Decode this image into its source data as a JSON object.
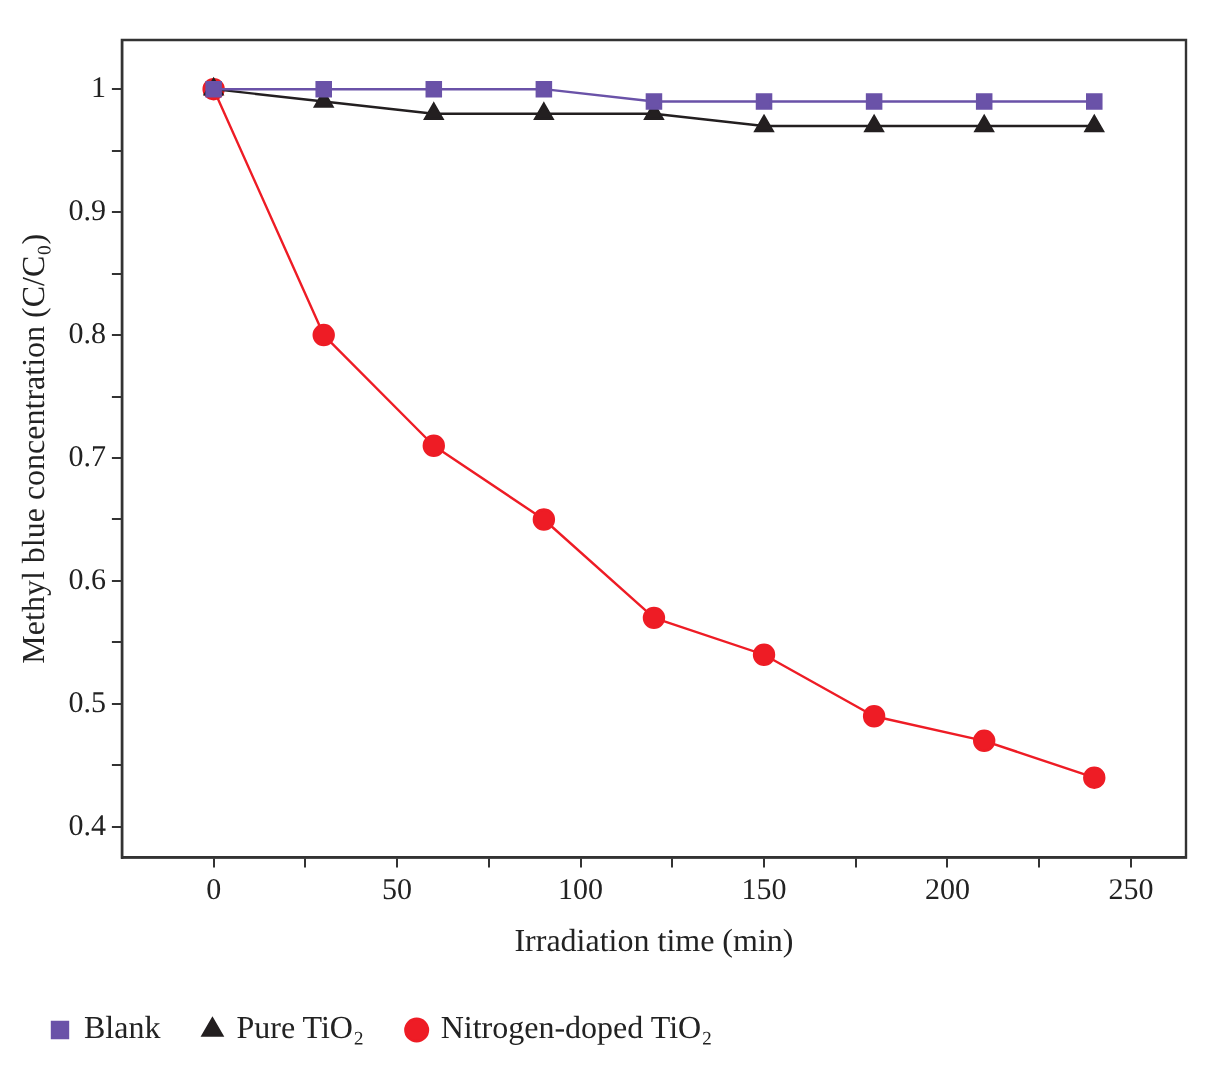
{
  "chart_data": {
    "type": "line",
    "xlabel": "Irradiation time (min)",
    "ylabel": "Methyl blue concentration (C/C₀)",
    "x": [
      0,
      30,
      60,
      90,
      120,
      150,
      180,
      210,
      240
    ],
    "series": [
      {
        "name": "Blank",
        "color": "#6a52a8",
        "marker": "square",
        "values": [
          1,
          1,
          1,
          1,
          0.99,
          0.99,
          0.99,
          0.99,
          0.99
        ]
      },
      {
        "name": "Pure TiO₂",
        "color": "#231f20",
        "marker": "triangle",
        "values": [
          1,
          0.99,
          0.98,
          0.98,
          0.98,
          0.97,
          0.97,
          0.97,
          0.97
        ]
      },
      {
        "name": "Nitrogen-doped TiO₂",
        "color": "#ee1c25",
        "marker": "circle",
        "values": [
          1,
          0.8,
          0.71,
          0.65,
          0.57,
          0.54,
          0.49,
          0.47,
          0.44
        ]
      }
    ],
    "xlim": [
      -25,
      265
    ],
    "xticks": [
      0,
      {
        "value": 25,
        "label": null
      },
      50,
      {
        "value": 75,
        "label": null
      },
      100,
      {
        "value": 125,
        "label": null
      },
      150,
      {
        "value": 175,
        "label": null
      },
      200,
      {
        "value": 225,
        "label": null
      },
      250
    ],
    "ylim": [
      0.375,
      1.04
    ],
    "yticks": [
      0.4,
      {
        "value": 0.45,
        "label": null
      },
      0.5,
      {
        "value": 0.55,
        "label": null
      },
      0.6,
      {
        "value": 0.65,
        "label": null
      },
      0.7,
      {
        "value": 0.75,
        "label": null
      },
      0.8,
      {
        "value": 0.85,
        "label": null
      },
      0.9,
      {
        "value": 0.95,
        "label": null
      },
      1
    ],
    "grid": false,
    "legend": "bottom",
    "line_style": "solid"
  }
}
